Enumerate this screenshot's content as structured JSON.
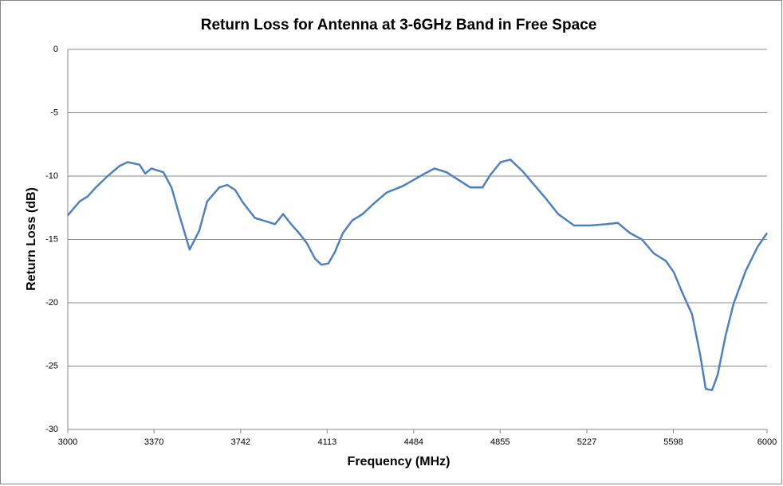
{
  "chart_data": {
    "type": "line",
    "title": "Return Loss for Antenna at 3-6GHz Band in Free Space",
    "x_label": "Frequency  (MHz)",
    "y_label": "Return Loss (dB)",
    "x": [
      3000,
      3051,
      3086,
      3120,
      3171,
      3222,
      3257,
      3308,
      3332,
      3359,
      3410,
      3445,
      3479,
      3523,
      3564,
      3598,
      3650,
      3684,
      3718,
      3752,
      3803,
      3855,
      3889,
      3924,
      3958,
      3992,
      4026,
      4060,
      4088,
      4118,
      4146,
      4180,
      4221,
      4265,
      4317,
      4368,
      4436,
      4522,
      4573,
      4625,
      4676,
      4727,
      4779,
      4813,
      4857,
      4899,
      4950,
      5001,
      5052,
      5104,
      5172,
      5241,
      5309,
      5360,
      5412,
      5463,
      5514,
      5566,
      5600,
      5634,
      5678,
      5713,
      5737,
      5764,
      5788,
      5822,
      5856,
      5908,
      5959,
      6000
    ],
    "series": [
      {
        "name": "Return Loss",
        "color": "#4f81bd",
        "values": [
          -13.1,
          -12.0,
          -11.6,
          -10.9,
          -10.0,
          -9.2,
          -8.9,
          -9.1,
          -9.8,
          -9.4,
          -9.7,
          -10.9,
          -13.1,
          -15.8,
          -14.3,
          -12.0,
          -10.9,
          -10.7,
          -11.1,
          -12.1,
          -13.3,
          -13.6,
          -13.8,
          -13.0,
          -13.8,
          -14.5,
          -15.3,
          -16.5,
          -17.0,
          -16.9,
          -16.0,
          -14.5,
          -13.5,
          -13.0,
          -12.1,
          -11.3,
          -10.8,
          -9.9,
          -9.4,
          -9.7,
          -10.3,
          -10.9,
          -10.9,
          -9.9,
          -8.9,
          -8.7,
          -9.6,
          -10.7,
          -11.8,
          -13.0,
          -13.9,
          -13.9,
          -13.8,
          -13.7,
          -14.5,
          -15.0,
          -16.1,
          -16.7,
          -17.6,
          -19.1,
          -20.9,
          -24.1,
          -26.8,
          -26.9,
          -25.7,
          -22.6,
          -20.1,
          -17.5,
          -15.6,
          -14.5
        ]
      }
    ],
    "xlim": [
      3000,
      6000
    ],
    "xticks": [
      3000,
      3370,
      3742,
      4113,
      4484,
      4855,
      5227,
      5598,
      6000
    ],
    "ylim": [
      -30,
      0
    ],
    "yticks": [
      0,
      -5,
      -10,
      -15,
      -20,
      -25,
      -30
    ],
    "grid": true
  }
}
